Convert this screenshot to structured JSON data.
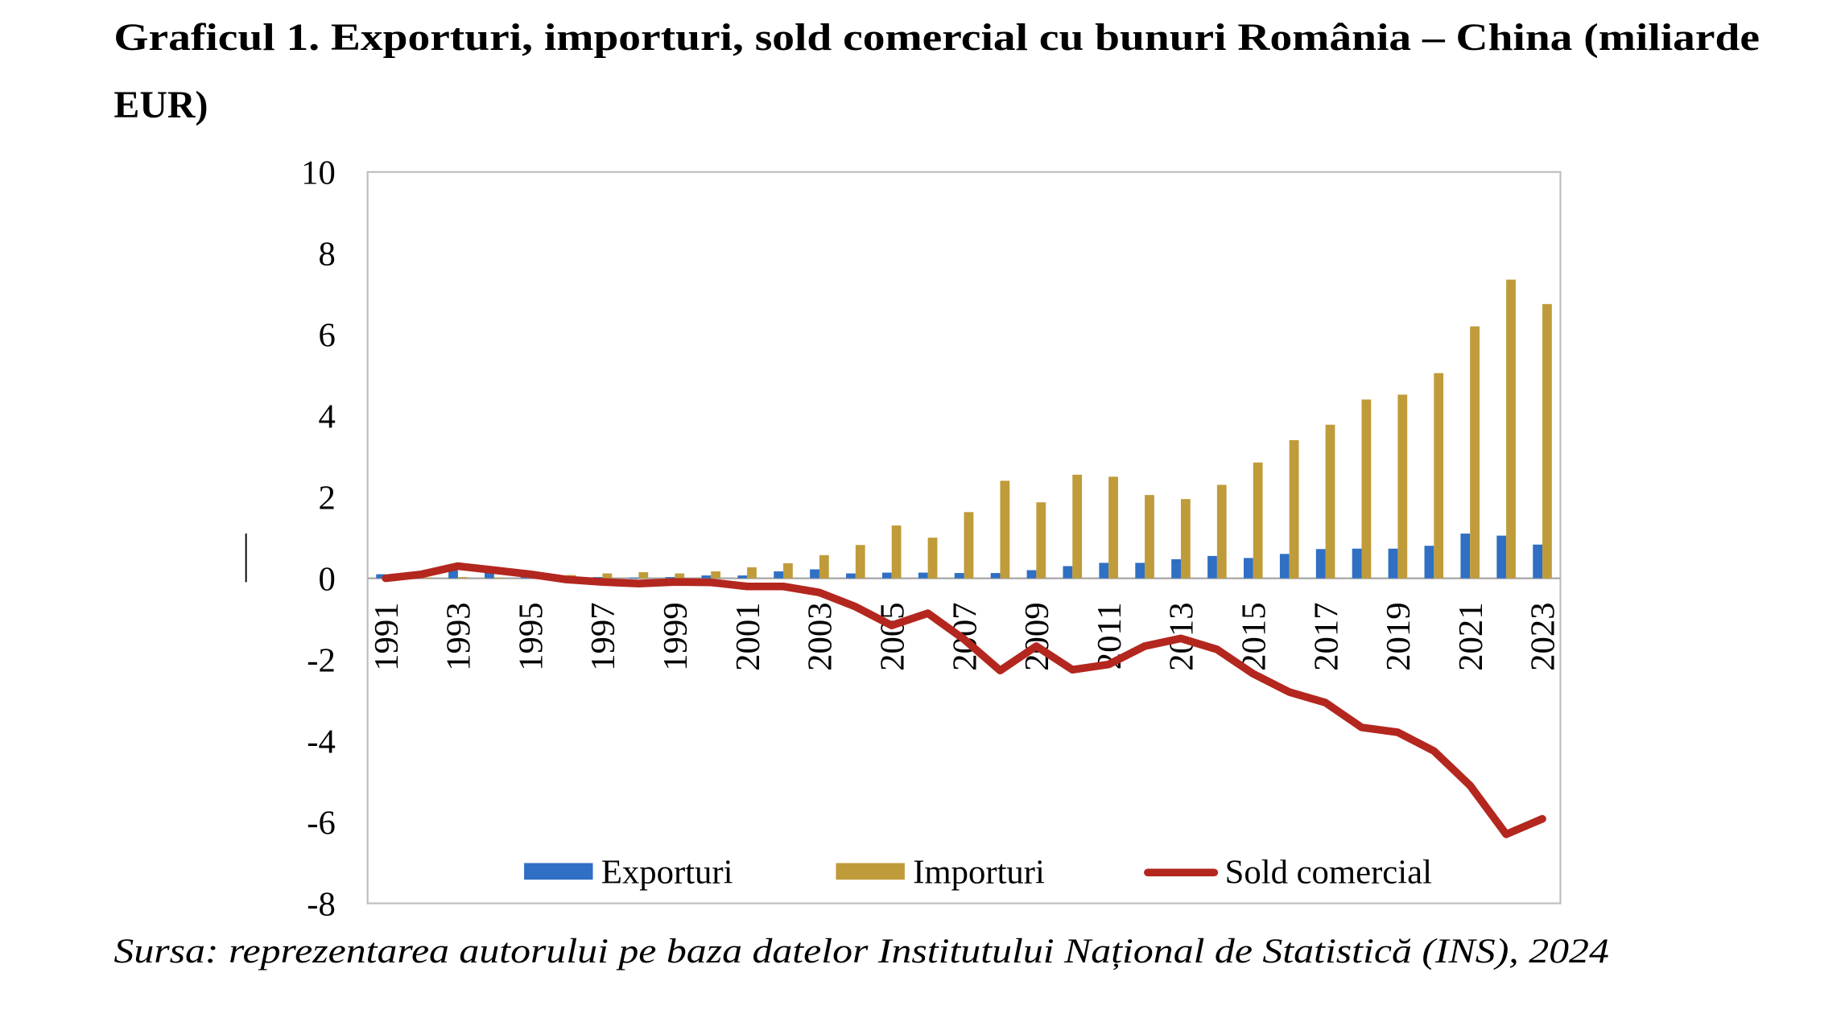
{
  "chart_data": {
    "type": "bar",
    "title_lines": [
      "Graficul 1. Exporturi, importuri, sold comercial cu bunuri România – China (miliarde",
      "EUR)"
    ],
    "xlabel": "",
    "ylabel": "",
    "ylim": [
      -8,
      10
    ],
    "yticks": [
      10,
      8,
      6,
      4,
      2,
      0,
      -2,
      -4,
      -6,
      -8
    ],
    "grid": false,
    "legend": {
      "position": "bottom-inside"
    },
    "x": [
      1991,
      1992,
      1993,
      1994,
      1995,
      1996,
      1997,
      1998,
      1999,
      2000,
      2001,
      2002,
      2003,
      2004,
      2005,
      2006,
      2007,
      2008,
      2009,
      2010,
      2011,
      2012,
      2013,
      2014,
      2015,
      2016,
      2017,
      2018,
      2019,
      2020,
      2021,
      2022,
      2023
    ],
    "x_tick_labels": [
      "1991",
      "1993",
      "1995",
      "1997",
      "1999",
      "2001",
      "2003",
      "2005",
      "2007",
      "2009",
      "2011",
      "2013",
      "2015",
      "2017",
      "2019",
      "2021",
      "2023"
    ],
    "series": [
      {
        "name": "Exporturi",
        "type": "bar",
        "color": "#2f6fc4",
        "values": [
          0.1,
          0.12,
          0.33,
          0.22,
          0.12,
          0.05,
          0.03,
          0.02,
          0.03,
          0.07,
          0.07,
          0.17,
          0.22,
          0.12,
          0.14,
          0.14,
          0.13,
          0.13,
          0.2,
          0.3,
          0.38,
          0.38,
          0.47,
          0.55,
          0.5,
          0.6,
          0.72,
          0.73,
          0.73,
          0.8,
          1.1,
          1.05,
          0.83
        ]
      },
      {
        "name": "Importuri",
        "type": "bar",
        "color": "#bf9b3a",
        "values": [
          0.08,
          0.02,
          0.03,
          0.02,
          0.02,
          0.08,
          0.12,
          0.15,
          0.12,
          0.17,
          0.27,
          0.37,
          0.57,
          0.82,
          1.3,
          1.0,
          1.63,
          2.4,
          1.87,
          2.55,
          2.5,
          2.05,
          1.95,
          2.3,
          2.85,
          3.4,
          3.78,
          4.4,
          4.52,
          5.05,
          6.2,
          7.35,
          6.75
        ]
      },
      {
        "name": "Sold comercial",
        "type": "line",
        "color": "#b3271f",
        "values": [
          0.0,
          0.1,
          0.3,
          0.2,
          0.1,
          -0.03,
          -0.09,
          -0.13,
          -0.09,
          -0.1,
          -0.2,
          -0.2,
          -0.35,
          -0.7,
          -1.16,
          -0.86,
          -1.5,
          -2.27,
          -1.67,
          -2.25,
          -2.12,
          -1.67,
          -1.48,
          -1.75,
          -2.35,
          -2.8,
          -3.06,
          -3.67,
          -3.79,
          -4.25,
          -5.1,
          -6.3,
          -5.92
        ]
      }
    ]
  },
  "source": "Sursa: reprezentarea autorului pe baza datelor Institutului Național de Statistică (INS), 2024"
}
